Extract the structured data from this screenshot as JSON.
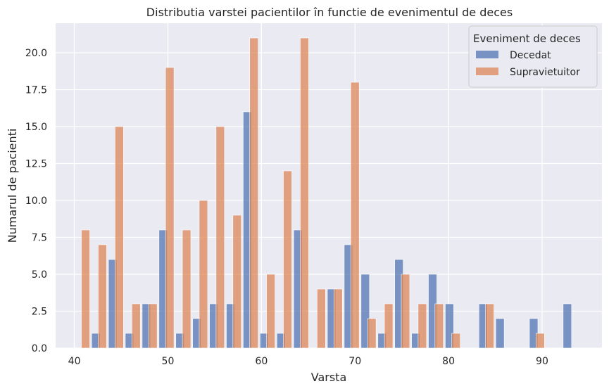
{
  "chart_data": {
    "type": "bar",
    "title": "Distributia varstei pacientilor în functie de evenimentul de deces",
    "xlabel": "Varsta",
    "ylabel": "Numarul de pacienti",
    "xlim": [
      38.0,
      96.4
    ],
    "ylim": [
      0,
      22
    ],
    "xticks": [
      "40",
      "50",
      "60",
      "70",
      "80",
      "90"
    ],
    "yticks": [
      "0.0",
      "2.5",
      "5.0",
      "7.5",
      "10.0",
      "12.5",
      "15.0",
      "17.5",
      "20.0"
    ],
    "grid": true,
    "legend": {
      "title": "Eveniment de deces",
      "placement": "top-right"
    },
    "bin_width": 0.9,
    "series": [
      {
        "name": "Decedat",
        "color": "#4c72b0",
        "bars": [
          {
            "x": 42.3,
            "y": 1
          },
          {
            "x": 44.1,
            "y": 6
          },
          {
            "x": 45.9,
            "y": 1
          },
          {
            "x": 47.7,
            "y": 3
          },
          {
            "x": 49.5,
            "y": 8
          },
          {
            "x": 51.3,
            "y": 1
          },
          {
            "x": 53.1,
            "y": 2
          },
          {
            "x": 54.9,
            "y": 3
          },
          {
            "x": 56.7,
            "y": 3
          },
          {
            "x": 58.5,
            "y": 16
          },
          {
            "x": 60.3,
            "y": 1
          },
          {
            "x": 62.1,
            "y": 1
          },
          {
            "x": 63.9,
            "y": 8
          },
          {
            "x": 67.5,
            "y": 4
          },
          {
            "x": 69.3,
            "y": 7
          },
          {
            "x": 71.1,
            "y": 5
          },
          {
            "x": 72.9,
            "y": 1
          },
          {
            "x": 74.7,
            "y": 6
          },
          {
            "x": 76.5,
            "y": 1
          },
          {
            "x": 78.3,
            "y": 5
          },
          {
            "x": 80.1,
            "y": 3
          },
          {
            "x": 83.7,
            "y": 3
          },
          {
            "x": 85.5,
            "y": 2
          },
          {
            "x": 89.1,
            "y": 2
          },
          {
            "x": 92.7,
            "y": 3
          }
        ]
      },
      {
        "name": "Supravietuitor",
        "color": "#dd8452",
        "bars": [
          {
            "x": 41.2,
            "y": 8
          },
          {
            "x": 43.0,
            "y": 7
          },
          {
            "x": 44.8,
            "y": 15
          },
          {
            "x": 46.6,
            "y": 3
          },
          {
            "x": 48.4,
            "y": 3
          },
          {
            "x": 50.2,
            "y": 19
          },
          {
            "x": 52.0,
            "y": 8
          },
          {
            "x": 53.8,
            "y": 10
          },
          {
            "x": 55.6,
            "y": 15
          },
          {
            "x": 57.4,
            "y": 9
          },
          {
            "x": 59.2,
            "y": 21
          },
          {
            "x": 61.0,
            "y": 5
          },
          {
            "x": 62.8,
            "y": 12
          },
          {
            "x": 64.6,
            "y": 21
          },
          {
            "x": 66.4,
            "y": 4
          },
          {
            "x": 68.2,
            "y": 4
          },
          {
            "x": 70.0,
            "y": 18
          },
          {
            "x": 71.8,
            "y": 2
          },
          {
            "x": 73.6,
            "y": 3
          },
          {
            "x": 75.4,
            "y": 5
          },
          {
            "x": 77.2,
            "y": 3
          },
          {
            "x": 79.0,
            "y": 3
          },
          {
            "x": 80.8,
            "y": 1
          },
          {
            "x": 84.4,
            "y": 3
          },
          {
            "x": 89.8,
            "y": 1
          }
        ]
      }
    ]
  }
}
